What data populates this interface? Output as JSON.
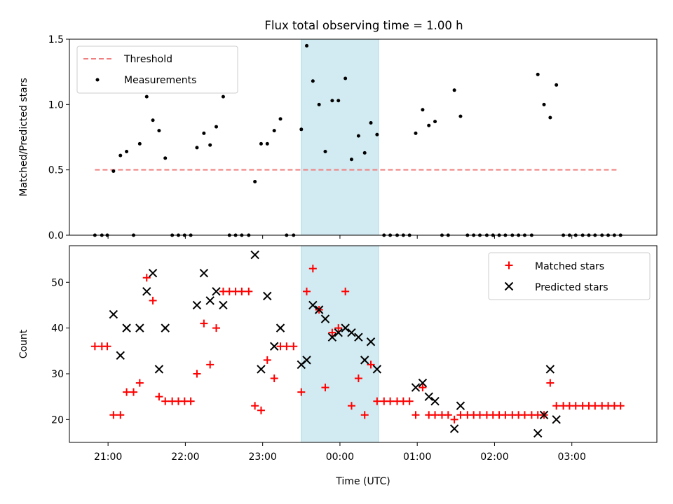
{
  "title": "Flux total observing time = 1.00 h",
  "colors": {
    "threshold": "#f08080",
    "measurement": "#000000",
    "matched": "#ff0000",
    "predicted": "#000000",
    "highlight": "#add8e6"
  },
  "chart_data": [
    {
      "type": "scatter",
      "ylabel": "Matched/Predicted stars",
      "ylim": [
        0,
        1.5
      ],
      "yticks": [
        0.0,
        0.5,
        1.0,
        1.5
      ],
      "ytick_labels": [
        "0.0",
        "0.5",
        "1.0",
        "1.5"
      ],
      "highlight_span": [
        23.5,
        24.5
      ],
      "legend": {
        "placement": "upper-left",
        "entries": [
          "Threshold",
          "Measurements"
        ]
      },
      "threshold": {
        "name": "Threshold",
        "x": [
          20.83,
          27.6
        ],
        "y": [
          0.5,
          0.5
        ]
      },
      "series": [
        {
          "name": "Measurements",
          "points": [
            [
              20.83,
              0
            ],
            [
              20.92,
              0
            ],
            [
              20.99,
              0
            ],
            [
              21.07,
              0.49
            ],
            [
              21.16,
              0.61
            ],
            [
              21.24,
              0.64
            ],
            [
              21.33,
              0
            ],
            [
              21.41,
              0.7
            ],
            [
              21.5,
              1.06
            ],
            [
              21.58,
              0.88
            ],
            [
              21.66,
              0.8
            ],
            [
              21.74,
              0.59
            ],
            [
              21.83,
              0
            ],
            [
              21.91,
              0
            ],
            [
              21.99,
              0
            ],
            [
              22.07,
              0
            ],
            [
              22.15,
              0.67
            ],
            [
              22.24,
              0.78
            ],
            [
              22.32,
              0.69
            ],
            [
              22.4,
              0.83
            ],
            [
              22.49,
              1.06
            ],
            [
              22.57,
              0
            ],
            [
              22.65,
              0
            ],
            [
              22.73,
              0
            ],
            [
              22.82,
              0
            ],
            [
              22.9,
              0.41
            ],
            [
              22.98,
              0.7
            ],
            [
              23.06,
              0.7
            ],
            [
              23.15,
              0.8
            ],
            [
              23.23,
              0.89
            ],
            [
              23.31,
              0
            ],
            [
              23.4,
              0
            ],
            [
              23.5,
              0.81
            ],
            [
              23.57,
              1.45
            ],
            [
              23.65,
              1.18
            ],
            [
              23.73,
              1.0
            ],
            [
              23.81,
              0.64
            ],
            [
              23.9,
              1.03
            ],
            [
              23.98,
              1.03
            ],
            [
              24.07,
              1.2
            ],
            [
              24.15,
              0.58
            ],
            [
              24.24,
              0.76
            ],
            [
              24.32,
              0.63
            ],
            [
              24.4,
              0.86
            ],
            [
              24.48,
              0.77
            ],
            [
              24.57,
              0
            ],
            [
              24.65,
              0
            ],
            [
              24.74,
              0
            ],
            [
              24.82,
              0
            ],
            [
              24.9,
              0
            ],
            [
              24.98,
              0.78
            ],
            [
              25.07,
              0.96
            ],
            [
              25.15,
              0.84
            ],
            [
              25.23,
              0.87
            ],
            [
              25.32,
              0
            ],
            [
              25.4,
              0
            ],
            [
              25.48,
              1.11
            ],
            [
              25.56,
              0.91
            ],
            [
              25.65,
              0
            ],
            [
              25.73,
              0
            ],
            [
              25.81,
              0
            ],
            [
              25.9,
              0
            ],
            [
              25.98,
              0
            ],
            [
              26.06,
              0
            ],
            [
              26.14,
              0
            ],
            [
              26.23,
              0
            ],
            [
              26.31,
              0
            ],
            [
              26.39,
              0
            ],
            [
              26.48,
              0
            ],
            [
              26.56,
              1.23
            ],
            [
              26.64,
              1.0
            ],
            [
              26.72,
              0.9
            ],
            [
              26.8,
              1.15
            ],
            [
              26.89,
              0
            ],
            [
              26.97,
              0
            ],
            [
              27.05,
              0
            ],
            [
              27.14,
              0
            ],
            [
              27.22,
              0
            ],
            [
              27.3,
              0
            ],
            [
              27.39,
              0
            ],
            [
              27.47,
              0
            ],
            [
              27.55,
              0
            ],
            [
              27.63,
              0
            ]
          ]
        }
      ]
    },
    {
      "type": "scatter",
      "xlabel": "Time (UTC)",
      "ylabel": "Count",
      "ylim": [
        15,
        58
      ],
      "yticks": [
        20,
        30,
        40,
        50
      ],
      "xlim": [
        20.5,
        28.1
      ],
      "xticks": [
        21,
        22,
        23,
        24,
        25,
        26,
        27
      ],
      "xtick_labels": [
        "21:00",
        "22:00",
        "23:00",
        "00:00",
        "01:00",
        "02:00",
        "03:00"
      ],
      "highlight_span": [
        23.5,
        24.5
      ],
      "legend": {
        "placement": "upper-right",
        "entries": [
          "Matched stars",
          "Predicted stars"
        ]
      },
      "series": [
        {
          "name": "Matched stars",
          "points": [
            [
              20.83,
              36
            ],
            [
              20.92,
              36
            ],
            [
              20.99,
              36
            ],
            [
              21.07,
              21
            ],
            [
              21.16,
              21
            ],
            [
              21.24,
              26
            ],
            [
              21.33,
              26
            ],
            [
              21.41,
              28
            ],
            [
              21.5,
              51
            ],
            [
              21.58,
              46
            ],
            [
              21.66,
              25
            ],
            [
              21.74,
              24
            ],
            [
              21.83,
              24
            ],
            [
              21.91,
              24
            ],
            [
              21.99,
              24
            ],
            [
              22.07,
              24
            ],
            [
              22.15,
              30
            ],
            [
              22.24,
              41
            ],
            [
              22.32,
              32
            ],
            [
              22.4,
              40
            ],
            [
              22.49,
              48
            ],
            [
              22.57,
              48
            ],
            [
              22.65,
              48
            ],
            [
              22.73,
              48
            ],
            [
              22.82,
              48
            ],
            [
              22.9,
              23
            ],
            [
              22.98,
              22
            ],
            [
              23.06,
              33
            ],
            [
              23.15,
              29
            ],
            [
              23.23,
              36
            ],
            [
              23.31,
              36
            ],
            [
              23.4,
              36
            ],
            [
              23.5,
              26
            ],
            [
              23.57,
              48
            ],
            [
              23.65,
              53
            ],
            [
              23.73,
              44
            ],
            [
              23.81,
              27
            ],
            [
              23.9,
              39
            ],
            [
              23.98,
              40
            ],
            [
              24.07,
              48
            ],
            [
              24.15,
              23
            ],
            [
              24.24,
              29
            ],
            [
              24.32,
              21
            ],
            [
              24.4,
              32
            ],
            [
              24.48,
              24
            ],
            [
              24.57,
              24
            ],
            [
              24.65,
              24
            ],
            [
              24.74,
              24
            ],
            [
              24.82,
              24
            ],
            [
              24.9,
              24
            ],
            [
              24.98,
              21
            ],
            [
              25.07,
              27
            ],
            [
              25.15,
              21
            ],
            [
              25.23,
              21
            ],
            [
              25.32,
              21
            ],
            [
              25.4,
              21
            ],
            [
              25.48,
              20
            ],
            [
              25.56,
              21
            ],
            [
              25.65,
              21
            ],
            [
              25.73,
              21
            ],
            [
              25.81,
              21
            ],
            [
              25.9,
              21
            ],
            [
              25.98,
              21
            ],
            [
              26.06,
              21
            ],
            [
              26.14,
              21
            ],
            [
              26.23,
              21
            ],
            [
              26.31,
              21
            ],
            [
              26.39,
              21
            ],
            [
              26.48,
              21
            ],
            [
              26.56,
              21
            ],
            [
              26.64,
              21
            ],
            [
              26.72,
              28
            ],
            [
              26.8,
              23
            ],
            [
              26.89,
              23
            ],
            [
              26.97,
              23
            ],
            [
              27.05,
              23
            ],
            [
              27.14,
              23
            ],
            [
              27.22,
              23
            ],
            [
              27.3,
              23
            ],
            [
              27.39,
              23
            ],
            [
              27.47,
              23
            ],
            [
              27.55,
              23
            ],
            [
              27.63,
              23
            ]
          ]
        },
        {
          "name": "Predicted stars",
          "points": [
            [
              21.07,
              43
            ],
            [
              21.16,
              34
            ],
            [
              21.24,
              40
            ],
            [
              21.41,
              40
            ],
            [
              21.5,
              48
            ],
            [
              21.58,
              52
            ],
            [
              21.66,
              31
            ],
            [
              21.74,
              40
            ],
            [
              22.15,
              45
            ],
            [
              22.24,
              52
            ],
            [
              22.32,
              46
            ],
            [
              22.4,
              48
            ],
            [
              22.49,
              45
            ],
            [
              22.9,
              56
            ],
            [
              22.98,
              31
            ],
            [
              23.06,
              47
            ],
            [
              23.15,
              36
            ],
            [
              23.23,
              40
            ],
            [
              23.5,
              32
            ],
            [
              23.57,
              33
            ],
            [
              23.65,
              45
            ],
            [
              23.73,
              44
            ],
            [
              23.81,
              42
            ],
            [
              23.9,
              38
            ],
            [
              23.98,
              39
            ],
            [
              24.07,
              40
            ],
            [
              24.15,
              39
            ],
            [
              24.24,
              38
            ],
            [
              24.32,
              33
            ],
            [
              24.4,
              37
            ],
            [
              24.48,
              31
            ],
            [
              24.98,
              27
            ],
            [
              25.07,
              28
            ],
            [
              25.15,
              25
            ],
            [
              25.23,
              24
            ],
            [
              25.48,
              18
            ],
            [
              25.56,
              23
            ],
            [
              26.56,
              17
            ],
            [
              26.64,
              21
            ],
            [
              26.72,
              31
            ],
            [
              26.8,
              20
            ]
          ]
        }
      ]
    }
  ]
}
